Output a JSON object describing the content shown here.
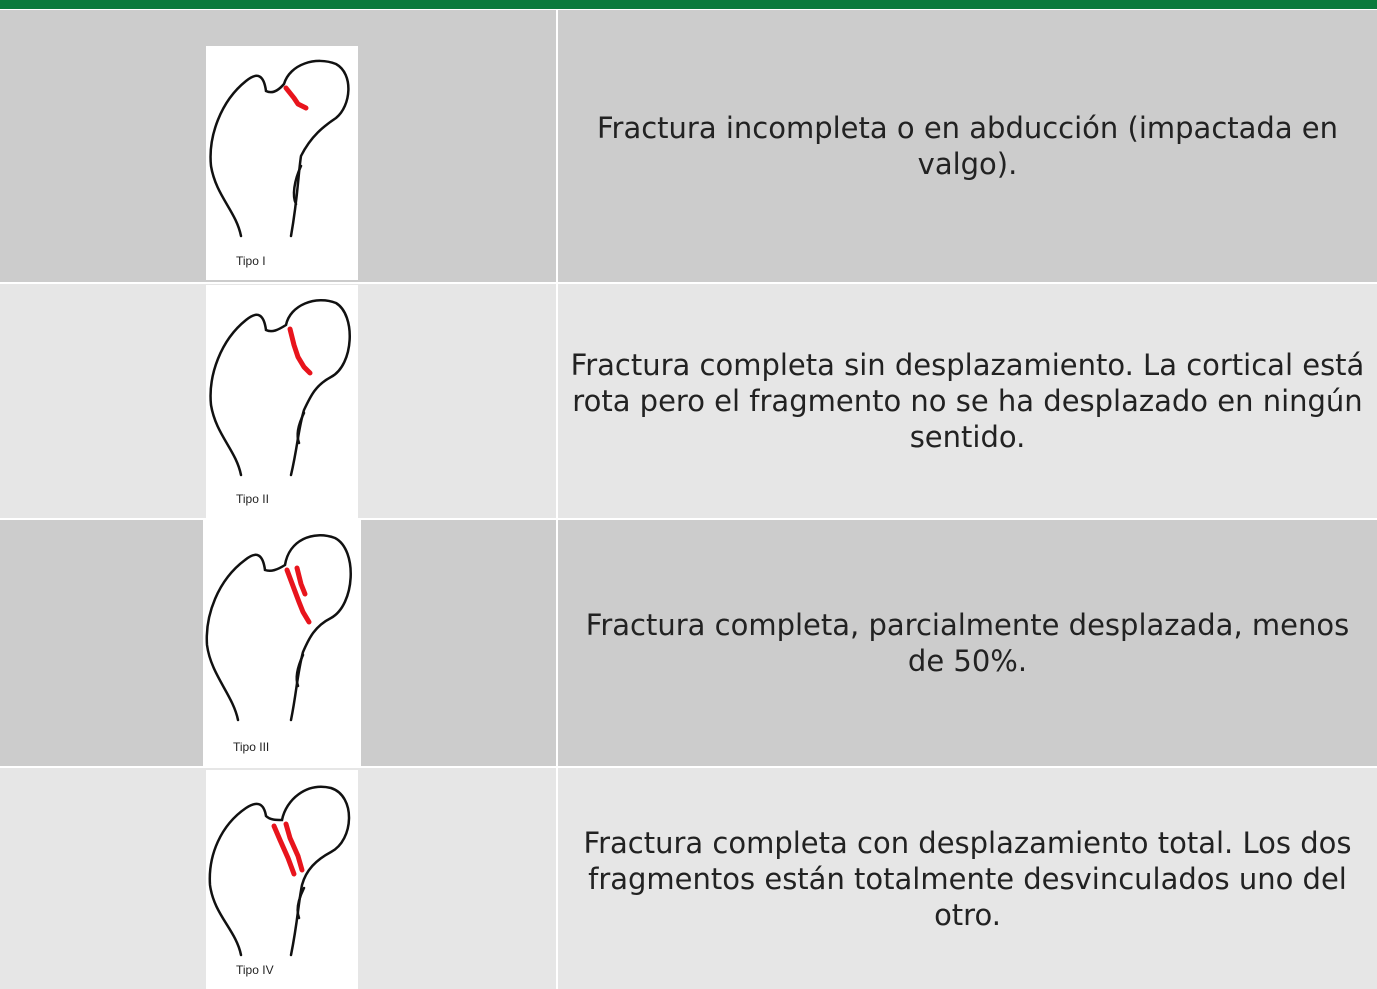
{
  "table": {
    "rows": [
      [
        "Tipo I",
        "Fractura incompleta o en abducción (impactada en valgo)."
      ],
      [
        "Tipo II",
        "Fractura completa sin desplazamiento. La cortical está rota pero el fragmento no se ha desplazado en ningún sentido."
      ],
      [
        "Tipo III",
        "Fractura completa, parcialmente desplazada, menos de 50%."
      ],
      [
        "Tipo IV",
        "Fractura completa con desplazamiento total. Los dos fragmentos están totalmente desvinculados uno del otro."
      ]
    ]
  }
}
